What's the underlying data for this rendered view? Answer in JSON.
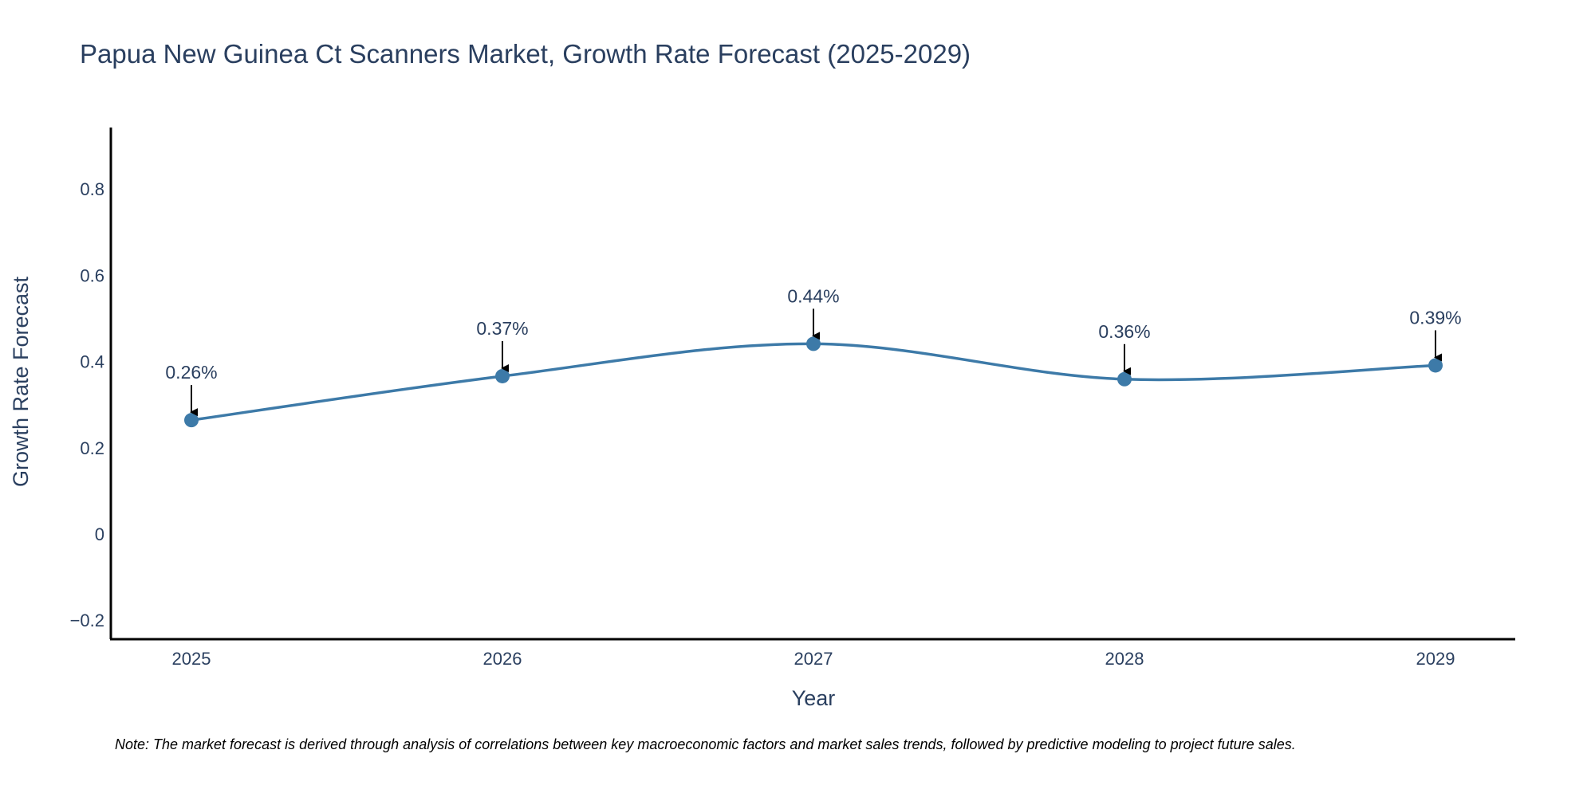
{
  "chart_data": {
    "type": "line",
    "title": "Papua New Guinea Ct Scanners Market, Growth Rate Forecast (2025-2029)",
    "xlabel": "Year",
    "ylabel": "Growth Rate Forecast",
    "categories": [
      "2025",
      "2026",
      "2027",
      "2028",
      "2029"
    ],
    "series": [
      {
        "name": "Growth Rate Forecast",
        "values": [
          0.264,
          0.366,
          0.441,
          0.359,
          0.391
        ],
        "labels": [
          "0.26%",
          "0.37%",
          "0.44%",
          "0.36%",
          "0.39%"
        ],
        "color": "#3d7aa8"
      }
    ],
    "ylim": [
      -0.24,
      0.94
    ],
    "yticks": [
      -0.2,
      0,
      0.2,
      0.4,
      0.6,
      0.8
    ],
    "ytick_labels": [
      "−0.2",
      "0",
      "0.2",
      "0.4",
      "0.6",
      "0.8"
    ],
    "grid": false,
    "legend": "none"
  },
  "note": "Note: The market forecast is derived through analysis of correlations between key macroeconomic factors and market sales trends, followed by predictive modeling to project future sales.",
  "colors": {
    "text": "#2a3f5f",
    "axis": "#000000",
    "line": "#3d7aa8",
    "arrow": "#000000"
  }
}
